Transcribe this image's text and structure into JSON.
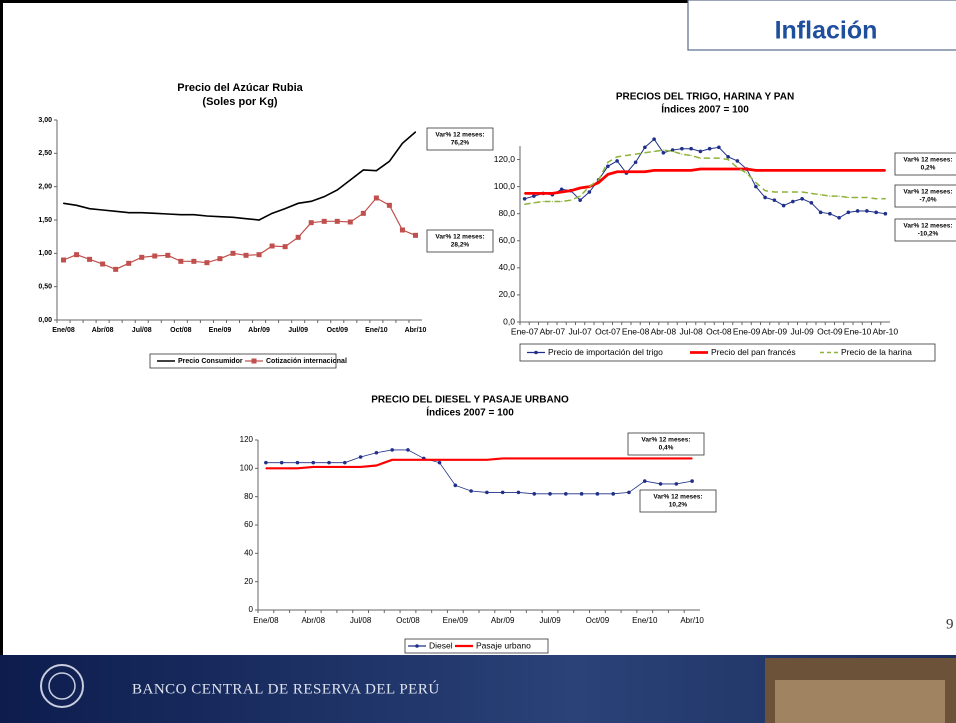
{
  "slide": {
    "title": "Inflación",
    "page": "9",
    "footer": "BANCO CENTRAL DE RESERVA DEL PERÚ"
  },
  "chart_data": [
    {
      "type": "line",
      "title": "Precio  del Azúcar Rubia",
      "subtitle": "(Soles por Kg)",
      "categories": [
        "Ene/08",
        null,
        null,
        "Abr/08",
        null,
        null,
        "Jul/08",
        null,
        null,
        "Oct/08",
        null,
        null,
        "Ene/09",
        null,
        null,
        "Abr/09",
        null,
        null,
        "Jul/09",
        null,
        null,
        "Oct/09",
        null,
        null,
        "Ene/10",
        null,
        null,
        "Abr/10"
      ],
      "ylim": [
        0,
        3
      ],
      "yticks": [
        {
          "value": 0,
          "label": "0,00"
        },
        {
          "value": 0.5,
          "label": "0,50"
        },
        {
          "value": 1,
          "label": "1,00"
        },
        {
          "value": 1.5,
          "label": "1,50"
        },
        {
          "value": 2,
          "label": "2,00"
        },
        {
          "value": 2.5,
          "label": "2,50"
        },
        {
          "value": 3,
          "label": "3,00"
        }
      ],
      "series": [
        {
          "name": "Precio Consumidor",
          "color": "#000000",
          "marker": "none",
          "values": [
            1.75,
            1.72,
            1.67,
            1.65,
            1.63,
            1.61,
            1.61,
            1.6,
            1.59,
            1.58,
            1.58,
            1.56,
            1.55,
            1.54,
            1.52,
            1.5,
            1.6,
            1.67,
            1.75,
            1.78,
            1.85,
            1.95,
            2.1,
            2.25,
            2.24,
            2.38,
            2.65,
            2.82
          ],
          "annotation": [
            "Var% 12 meses:",
            "76,2%"
          ]
        },
        {
          "name": "Cotización internacional",
          "color": "#c0504d",
          "marker": "square",
          "values": [
            0.9,
            0.98,
            0.91,
            0.84,
            0.76,
            0.85,
            0.94,
            0.96,
            0.97,
            0.88,
            0.88,
            0.86,
            0.92,
            1.0,
            0.97,
            0.98,
            1.11,
            1.1,
            1.24,
            1.46,
            1.48,
            1.48,
            1.47,
            1.6,
            1.83,
            1.72,
            1.35,
            1.27
          ],
          "annotation": [
            "Var% 12 meses:",
            "28,2%"
          ]
        }
      ]
    },
    {
      "type": "line",
      "title": "PRECIOS DEL TRIGO,  HARINA  Y  PAN",
      "subtitle": "Índices 2007 = 100",
      "categories": [
        "Ene-07",
        null,
        null,
        "Abr-07",
        null,
        null,
        "Jul-07",
        null,
        null,
        "Oct-07",
        null,
        null,
        "Ene-08",
        null,
        null,
        "Abr-08",
        null,
        null,
        "Jul-08",
        null,
        null,
        "Oct-08",
        null,
        null,
        "Ene-09",
        null,
        null,
        "Abr-09",
        null,
        null,
        "Jul-09",
        null,
        null,
        "Oct-09",
        null,
        null,
        "Ene-10",
        null,
        null,
        "Abr-10"
      ],
      "ylim": [
        0,
        130
      ],
      "yticks": [
        {
          "value": 0,
          "label": "0,0"
        },
        {
          "value": 20,
          "label": "20,0"
        },
        {
          "value": 40,
          "label": "40,0"
        },
        {
          "value": 60,
          "label": "60,0"
        },
        {
          "value": 80,
          "label": "80,0"
        },
        {
          "value": 100,
          "label": "100,0"
        },
        {
          "value": 120,
          "label": "120,0"
        }
      ],
      "series": [
        {
          "name": "Precio de importación del trigo",
          "color": "#1f2f8a",
          "marker": "circle",
          "values": [
            91,
            93,
            95,
            94,
            98,
            97,
            90,
            96,
            105,
            115,
            119,
            110,
            118,
            129,
            135,
            125,
            127,
            128,
            128,
            126,
            128,
            129,
            122,
            119,
            113,
            100,
            92,
            90,
            86,
            89,
            91,
            88,
            81,
            80,
            77,
            81,
            82,
            82,
            81,
            80
          ],
          "annotation": [
            "Var% 12 meses:",
            "-10,2%"
          ]
        },
        {
          "name": "Precio del pan francés",
          "color": "#ff0000",
          "marker": "none",
          "values": [
            95,
            95,
            95,
            95,
            96,
            97,
            99,
            100,
            103,
            109,
            111,
            111,
            111,
            111,
            112,
            112,
            112,
            112,
            112,
            113,
            113,
            113,
            113,
            113,
            113,
            112,
            112,
            112,
            112,
            112,
            112,
            112,
            112,
            112,
            112,
            112,
            112,
            112,
            112,
            112
          ],
          "annotation": [
            "Var% 12 meses:",
            "0,2%"
          ]
        },
        {
          "name": "Precio de la harina",
          "color": "#8db33a",
          "marker": "dash",
          "values": [
            87,
            88,
            89,
            89,
            89,
            90,
            93,
            100,
            105,
            118,
            122,
            123,
            124,
            125,
            126,
            127,
            126,
            124,
            123,
            121,
            121,
            121,
            120,
            114,
            110,
            103,
            97,
            96,
            96,
            96,
            96,
            95,
            94,
            93,
            93,
            92,
            92,
            92,
            91,
            91
          ],
          "annotation": [
            "Var% 12 meses:",
            "-7,0%"
          ]
        }
      ]
    },
    {
      "type": "line",
      "title": "PRECIO DEL DIESEL Y  PASAJE URBANO",
      "subtitle": "Índices 2007 = 100",
      "categories": [
        "Ene/08",
        null,
        null,
        "Abr/08",
        null,
        null,
        "Jul/08",
        null,
        null,
        "Oct/08",
        null,
        null,
        "Ene/09",
        null,
        null,
        "Abr/09",
        null,
        null,
        "Jul/09",
        null,
        null,
        "Oct/09",
        null,
        null,
        "Ene/10",
        null,
        null,
        "Abr/10"
      ],
      "ylim": [
        0,
        120
      ],
      "yticks": [
        0,
        20,
        40,
        60,
        80,
        100,
        120
      ],
      "series": [
        {
          "name": "Diesel",
          "color": "#1f2f8a",
          "marker": "circle",
          "values": [
            104,
            104,
            104,
            104,
            104,
            104,
            108,
            111,
            113,
            113,
            107,
            104,
            88,
            84,
            83,
            83,
            83,
            82,
            82,
            82,
            82,
            82,
            82,
            83,
            91,
            89,
            89,
            91
          ],
          "annotation": [
            "Var% 12 meses:",
            "10,2%"
          ]
        },
        {
          "name": "Pasaje urbano",
          "color": "#ff0000",
          "marker": "none",
          "values": [
            100,
            100,
            100,
            101,
            101,
            101,
            101,
            102,
            106,
            106,
            106,
            106,
            106,
            106,
            106,
            107,
            107,
            107,
            107,
            107,
            107,
            107,
            107,
            107,
            107,
            107,
            107,
            107
          ],
          "annotation": [
            "Var% 12 meses:",
            "0,4%"
          ]
        }
      ]
    }
  ]
}
